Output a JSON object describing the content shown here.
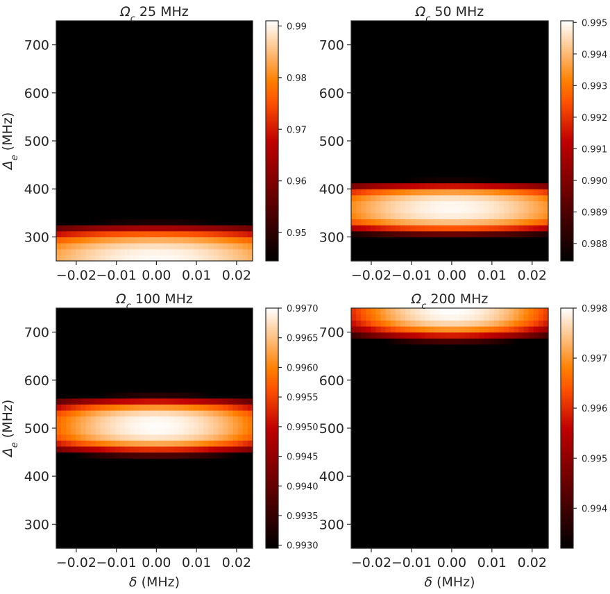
{
  "figure": {
    "colormap": "gist_heat",
    "background": "#ffffff",
    "axis_color": "#262626"
  },
  "chart_data": [
    {
      "type": "heatmap",
      "title": "Ω_c 25 MHz",
      "title_main": "Ω",
      "title_sub": "c",
      "title_rest": " 25 MHz",
      "xlabel": "",
      "ylabel": "Δ_e (MHz)",
      "ylabel_main": "Δ",
      "ylabel_sub": "e",
      "ylabel_rest": " (MHz)",
      "xlim": [
        -0.025,
        0.024
      ],
      "ylim": [
        250,
        750
      ],
      "xticks": [
        -0.02,
        -0.01,
        0.0,
        0.01,
        0.02
      ],
      "xtick_labels": [
        "−0.02",
        "−0.01",
        "0.00",
        "0.01",
        "0.02"
      ],
      "yticks": [
        300,
        400,
        500,
        600,
        700
      ],
      "ytick_labels": [
        "300",
        "400",
        "500",
        "600",
        "700"
      ],
      "grid": {
        "nx": 40,
        "ny": 40
      },
      "colorbar": {
        "vmin": 0.9445,
        "vmax": 0.991,
        "ticks": [
          0.95,
          0.96,
          0.97,
          0.98,
          0.99
        ],
        "tick_labels": [
          "0.95",
          "0.96",
          "0.97",
          "0.98",
          "0.99"
        ]
      },
      "model": {
        "peak_y": 250,
        "peak_value": 0.9905,
        "y_falloff": 8e-08,
        "x_falloff": 12,
        "exp": 2
      }
    },
    {
      "type": "heatmap",
      "title": "Ω_c 50 MHz",
      "title_main": "Ω",
      "title_sub": "c",
      "title_rest": " 50 MHz",
      "xlabel": "",
      "ylabel": "",
      "ylabel_main": "",
      "ylabel_sub": "",
      "ylabel_rest": "",
      "xlim": [
        -0.025,
        0.024
      ],
      "ylim": [
        250,
        750
      ],
      "xticks": [
        -0.02,
        -0.01,
        0.0,
        0.01,
        0.02
      ],
      "xtick_labels": [
        "−0.02",
        "−0.01",
        "0.00",
        "0.01",
        "0.02"
      ],
      "yticks": [
        300,
        400,
        500,
        600,
        700
      ],
      "ytick_labels": [
        "300",
        "400",
        "500",
        "600",
        "700"
      ],
      "grid": {
        "nx": 40,
        "ny": 40
      },
      "colorbar": {
        "vmin": 0.98745,
        "vmax": 0.99505,
        "ticks": [
          0.988,
          0.989,
          0.99,
          0.991,
          0.992,
          0.993,
          0.994,
          0.995
        ],
        "tick_labels": [
          "0.988",
          "0.989",
          "0.990",
          "0.991",
          "0.992",
          "0.993",
          "0.994",
          "0.995"
        ]
      },
      "model": {
        "peak_y": 360,
        "peak_value": 0.99495,
        "y_falloff": 3.5e-08,
        "x_falloff": 2.6,
        "exp": 2
      }
    },
    {
      "type": "heatmap",
      "title": "Ω_c 100 MHz",
      "title_main": "Ω",
      "title_sub": "c",
      "title_rest": " 100 MHz",
      "xlabel": "δ (MHz)",
      "xlabel_main": "δ",
      "xlabel_rest": " (MHz)",
      "ylabel": "Δ_e (MHz)",
      "ylabel_main": "Δ",
      "ylabel_sub": "e",
      "ylabel_rest": " (MHz)",
      "xlim": [
        -0.025,
        0.024
      ],
      "ylim": [
        250,
        750
      ],
      "xticks": [
        -0.02,
        -0.01,
        0.0,
        0.01,
        0.02
      ],
      "xtick_labels": [
        "−0.02",
        "−0.01",
        "0.00",
        "0.01",
        "0.02"
      ],
      "yticks": [
        300,
        400,
        500,
        600,
        700
      ],
      "ytick_labels": [
        "300",
        "400",
        "500",
        "600",
        "700"
      ],
      "grid": {
        "nx": 40,
        "ny": 40
      },
      "colorbar": {
        "vmin": 0.99295,
        "vmax": 0.997,
        "ticks": [
          0.993,
          0.9935,
          0.994,
          0.9945,
          0.995,
          0.9955,
          0.996,
          0.9965,
          0.997
        ],
        "tick_labels": [
          "0.9930",
          "0.9935",
          "0.9940",
          "0.9945",
          "0.9950",
          "0.9955",
          "0.9960",
          "0.9965",
          "0.9970"
        ]
      },
      "model": {
        "peak_y": 505,
        "peak_value": 0.99698,
        "y_falloff": 1.4e-08,
        "x_falloff": 1.9,
        "exp": 2
      }
    },
    {
      "type": "heatmap",
      "title": "Ω_c 200 MHz",
      "title_main": "Ω",
      "title_sub": "c",
      "title_rest": " 200 MHz",
      "xlabel": "δ (MHz)",
      "xlabel_main": "δ",
      "xlabel_rest": " (MHz)",
      "ylabel": "",
      "ylabel_main": "",
      "ylabel_sub": "",
      "ylabel_rest": "",
      "xlim": [
        -0.025,
        0.024
      ],
      "ylim": [
        250,
        750
      ],
      "xticks": [
        -0.02,
        -0.01,
        0.0,
        0.01,
        0.02
      ],
      "xtick_labels": [
        "−0.02",
        "−0.01",
        "0.00",
        "0.01",
        "0.02"
      ],
      "yticks": [
        300,
        400,
        500,
        600,
        700
      ],
      "ytick_labels": [
        "300",
        "400",
        "500",
        "600",
        "700"
      ],
      "grid": {
        "nx": 40,
        "ny": 40
      },
      "colorbar": {
        "vmin": 0.9932,
        "vmax": 0.998,
        "ticks": [
          0.994,
          0.995,
          0.996,
          0.997,
          0.998
        ],
        "tick_labels": [
          "0.994",
          "0.995",
          "0.996",
          "0.997",
          "0.998"
        ]
      },
      "model": {
        "peak_y": 750,
        "peak_value": 0.99799,
        "y_falloff": 1.2e-08,
        "x_falloff": 3.2,
        "exp": 2
      }
    }
  ]
}
